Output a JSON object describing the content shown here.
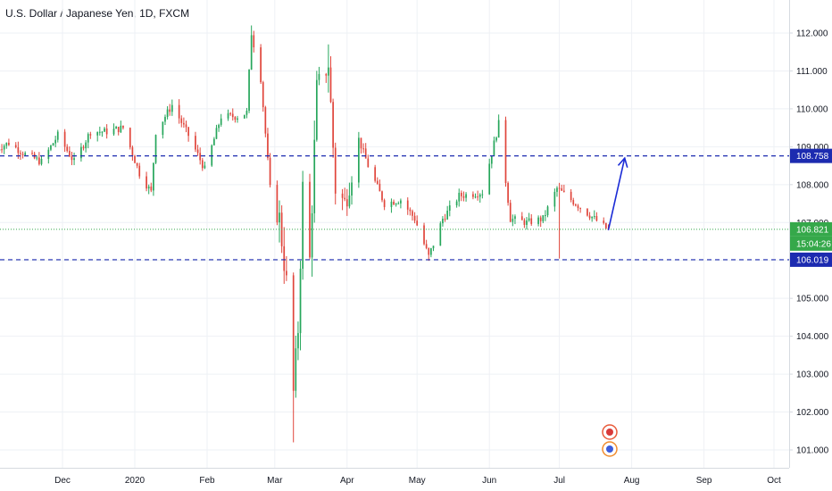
{
  "header": {
    "title": "U.S. Dollar / Japanese Yen, 1D, FXCM"
  },
  "colors": {
    "up": "#26a65b",
    "down": "#e0453b",
    "grid": "#eef1f5",
    "level_line": "#1c2bb0",
    "current_line": "#35a84a",
    "arrow": "#1a2bd6",
    "text": "#131722",
    "axis_border": "#d6dae0"
  },
  "chart_data": {
    "type": "candlestick",
    "title": "U.S. Dollar / Japanese Yen, 1D, FXCM",
    "x_tick_labels": [
      "Dec",
      "2020",
      "Feb",
      "Mar",
      "Apr",
      "May",
      "Jun",
      "Jul",
      "Aug",
      "Sep",
      "Oct"
    ],
    "y_tick_labels": [
      "101.000",
      "102.000",
      "103.000",
      "104.000",
      "105.000",
      "106.000",
      "107.000",
      "108.000",
      "109.000",
      "110.000",
      "111.000",
      "112.000"
    ],
    "ylim": [
      100.6,
      112.45
    ],
    "grid": true,
    "horizontal_levels": [
      {
        "value": 108.758,
        "label": "108.758",
        "style": "dashed",
        "color": "#1c2bb0"
      },
      {
        "value": 106.019,
        "label": "106.019",
        "style": "dashed",
        "color": "#1c2bb0"
      }
    ],
    "current_price": {
      "value": 106.821,
      "label": "106.821",
      "countdown": "15:04:26"
    },
    "projection_arrow": {
      "from_date": "2020-07-22",
      "from_value": 106.8,
      "to_date": "2020-07-29",
      "to_value": 108.7
    },
    "price_path": [
      [
        "2019-11-01",
        108.9
      ],
      [
        "2019-11-08",
        109.1
      ],
      [
        "2019-11-15",
        108.8
      ],
      [
        "2019-11-22",
        108.6
      ],
      [
        "2019-11-29",
        109.3
      ],
      [
        "2019-12-06",
        108.6
      ],
      [
        "2019-12-13",
        109.4
      ],
      [
        "2019-12-20",
        109.4
      ],
      [
        "2019-12-27",
        109.5
      ],
      [
        "2020-01-03",
        108.3
      ],
      [
        "2020-01-08",
        107.8
      ],
      [
        "2020-01-10",
        109.4
      ],
      [
        "2020-01-17",
        110.1
      ],
      [
        "2020-01-24",
        109.3
      ],
      [
        "2020-01-31",
        108.4
      ],
      [
        "2020-02-07",
        109.8
      ],
      [
        "2020-02-14",
        109.8
      ],
      [
        "2020-02-18",
        109.9
      ],
      [
        "2020-02-20",
        112.0
      ],
      [
        "2020-02-24",
        110.8
      ],
      [
        "2020-02-28",
        107.9
      ],
      [
        "2020-03-03",
        107.1
      ],
      [
        "2020-03-06",
        105.4
      ],
      [
        "2020-03-09",
        102.5
      ],
      [
        "2020-03-11",
        104.2
      ],
      [
        "2020-03-13",
        107.9
      ],
      [
        "2020-03-16",
        106.0
      ],
      [
        "2020-03-19",
        110.5
      ],
      [
        "2020-03-24",
        111.2
      ],
      [
        "2020-03-27",
        107.9
      ],
      [
        "2020-03-31",
        107.5
      ],
      [
        "2020-04-06",
        109.2
      ],
      [
        "2020-04-10",
        108.5
      ],
      [
        "2020-04-17",
        107.5
      ],
      [
        "2020-04-24",
        107.6
      ],
      [
        "2020-04-30",
        107.1
      ],
      [
        "2020-05-06",
        106.1
      ],
      [
        "2020-05-12",
        107.1
      ],
      [
        "2020-05-19",
        107.7
      ],
      [
        "2020-05-29",
        107.8
      ],
      [
        "2020-06-05",
        109.6
      ],
      [
        "2020-06-10",
        107.1
      ],
      [
        "2020-06-17",
        107.0
      ],
      [
        "2020-06-24",
        107.1
      ],
      [
        "2020-06-30",
        107.9
      ],
      [
        "2020-07-06",
        107.6
      ],
      [
        "2020-07-14",
        107.2
      ],
      [
        "2020-07-22",
        106.8
      ]
    ]
  }
}
